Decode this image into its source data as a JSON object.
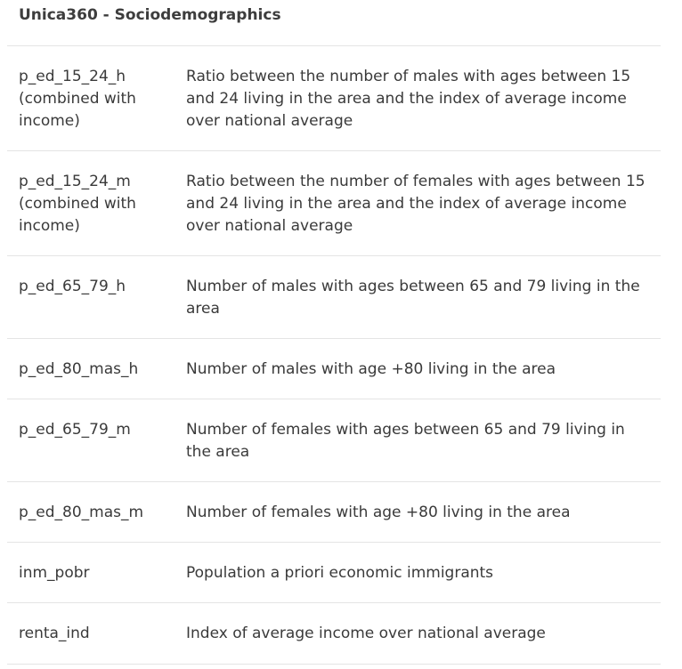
{
  "title": "Unica360 - Sociodemographics",
  "rows": [
    {
      "name_lines": [
        "p_ed_15_24_h",
        "(combined with",
        "income)"
      ],
      "description": "Ratio between the number of males with ages between 15 and 24 living in the area and the index of average income over national average"
    },
    {
      "name_lines": [
        "p_ed_15_24_m",
        "(combined with",
        "income)"
      ],
      "description": "Ratio between the number of females with ages between 15 and 24 living in the area  and the index of average income over national average"
    },
    {
      "name_lines": [
        "p_ed_65_79_h"
      ],
      "description": "Number of males with ages between 65 and 79 living in the area"
    },
    {
      "name_lines": [
        "p_ed_80_mas_h"
      ],
      "description": "Number of males with age +80 living in the area"
    },
    {
      "name_lines": [
        "p_ed_65_79_m"
      ],
      "description": "Number of females with ages between 65 and 79 living in the area"
    },
    {
      "name_lines": [
        "p_ed_80_mas_m"
      ],
      "description": "Number of females with age +80 living in the area"
    },
    {
      "name_lines": [
        "inm_pobr"
      ],
      "description": "Population a priori economic immigrants"
    },
    {
      "name_lines": [
        "renta_ind"
      ],
      "description": "Index of average income over national average"
    }
  ]
}
